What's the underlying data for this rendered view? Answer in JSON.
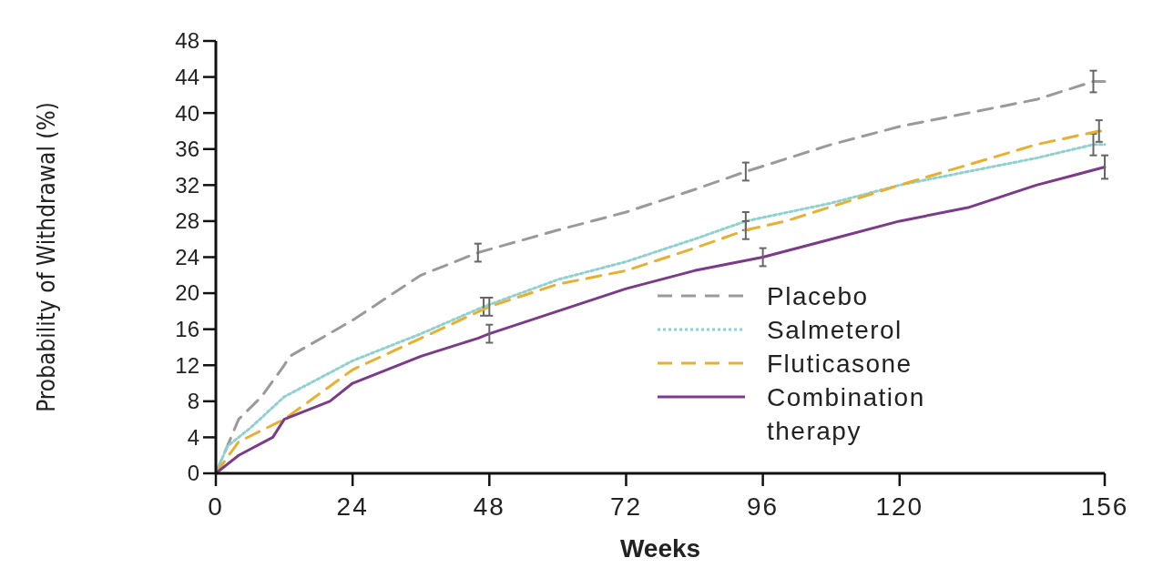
{
  "chart_data": {
    "type": "line",
    "xlabel": "Weeks",
    "ylabel": "Probability of Withdrawal (%)",
    "xlim": [
      0,
      156
    ],
    "ylim": [
      0,
      48
    ],
    "xticks": [
      0,
      24,
      48,
      72,
      96,
      120,
      156
    ],
    "yticks": [
      0,
      4,
      8,
      12,
      16,
      20,
      24,
      28,
      32,
      36,
      40,
      44,
      48
    ],
    "grid": false,
    "legend": "bottom right",
    "marker": "none",
    "series": [
      {
        "name": "Placebo",
        "color": "#9a9a9a",
        "line_style": "dashed",
        "x": [
          0,
          2,
          4,
          8,
          12,
          13,
          24,
          36,
          46,
          60,
          72,
          84,
          93,
          108,
          120,
          144,
          154,
          156
        ],
        "values": [
          0,
          3,
          6,
          8.5,
          12,
          13,
          17,
          22,
          24.5,
          27,
          29,
          31.5,
          33.5,
          36.5,
          38.5,
          41.5,
          43.5,
          43.5
        ],
        "errors": [
          null,
          null,
          null,
          null,
          null,
          null,
          null,
          null,
          1,
          null,
          null,
          null,
          1,
          null,
          null,
          null,
          1.2,
          null
        ]
      },
      {
        "name": "Salmeterol",
        "color": "#8fd0d0",
        "line_style": "dotted",
        "x": [
          0,
          2,
          6,
          12,
          24,
          36,
          47,
          60,
          72,
          84,
          93,
          108,
          120,
          144,
          154,
          156
        ],
        "values": [
          0,
          3,
          5,
          8.5,
          12.5,
          15.5,
          18.5,
          21.5,
          23.5,
          26,
          28,
          30,
          32,
          35,
          36.5,
          36.5
        ],
        "errors": [
          null,
          null,
          null,
          null,
          null,
          null,
          1,
          null,
          null,
          null,
          1,
          null,
          null,
          null,
          1.2,
          null
        ]
      },
      {
        "name": "Fluticasone",
        "color": "#e8b030",
        "line_style": "dashed",
        "x": [
          0,
          4,
          12,
          24,
          36,
          48,
          60,
          72,
          84,
          93,
          100,
          120,
          144,
          155,
          156
        ],
        "values": [
          0,
          3.5,
          6,
          11.5,
          15,
          18.5,
          21,
          22.5,
          25,
          27,
          28,
          32,
          36.5,
          38,
          38
        ],
        "errors": [
          null,
          null,
          null,
          null,
          null,
          1,
          null,
          null,
          null,
          1,
          null,
          null,
          null,
          1.2,
          null
        ]
      },
      {
        "name": "Combination therapy",
        "color": "#7b3a8a",
        "line_style": "solid",
        "x": [
          0,
          4,
          10,
          12,
          20,
          24,
          36,
          46,
          48,
          60,
          72,
          84,
          96,
          108,
          120,
          132,
          144,
          150,
          156
        ],
        "values": [
          0,
          2,
          4,
          6,
          8,
          10,
          13,
          15,
          15.5,
          18,
          20.5,
          22.5,
          24,
          26,
          28,
          29.5,
          32,
          33,
          34
        ],
        "errors": [
          null,
          null,
          null,
          null,
          null,
          null,
          null,
          null,
          1,
          null,
          null,
          null,
          1,
          null,
          null,
          null,
          null,
          null,
          1.3
        ]
      }
    ]
  }
}
